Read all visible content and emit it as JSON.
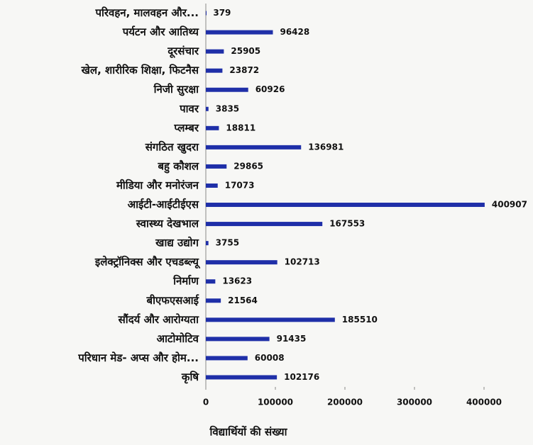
{
  "chart_data": {
    "type": "barh",
    "categories": [
      "परिवहन, मालवहन और...",
      "पर्यटन और आतिथ्य",
      "दूरसंचार",
      "खेल, शारीरिक शिक्षा, फिटनैस",
      "निजी सुरक्षा",
      "पावर",
      "प्लम्बर",
      "संगठित खुदरा",
      "बहु कौशल",
      "मीडिया और मनोरंजन",
      "आईटी-आईटीईएस",
      "स्वास्थ्य देखभाल",
      "खाद्य उद्योग",
      "इलेक्ट्रॉनिक्स और एचडब्ल्यू",
      "निर्माण",
      "बीएफएसआई",
      "सौंदर्य और आरोग्यता",
      "आटोमोटिव",
      "परिधान मेड- अप्स और होम...",
      "कृषि"
    ],
    "values": [
      379,
      96428,
      25905,
      23872,
      60926,
      3835,
      18811,
      136981,
      29865,
      17073,
      400907,
      167553,
      3755,
      102713,
      13623,
      21564,
      185510,
      91435,
      60008,
      102176
    ],
    "color": "#1f2fa8",
    "xlabel": "विद्यार्थियों की संख्या",
    "xlim": [
      0,
      420000
    ],
    "xticks": [
      0,
      100000,
      200000,
      300000,
      400000
    ]
  }
}
